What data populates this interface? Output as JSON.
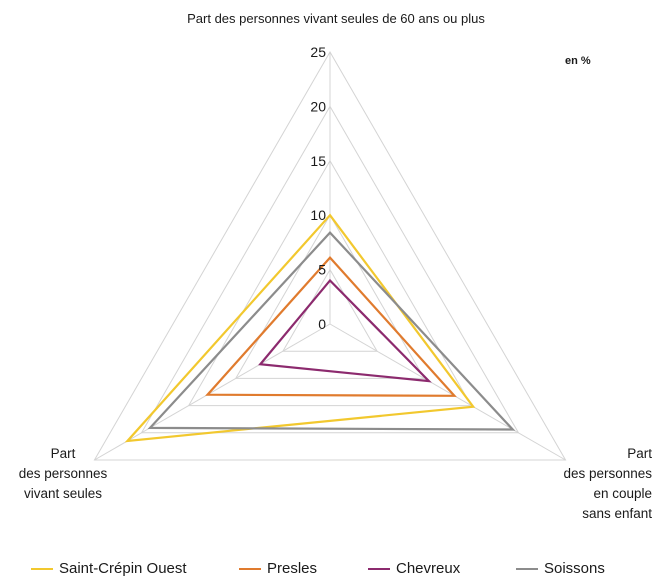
{
  "chart_data": {
    "type": "radar",
    "title": "Part des personnes vivant seules de 60 ans ou plus",
    "unit_label": "en %",
    "axes": [
      {
        "label_lines": [
          "Part des personnes vivant seules de 60 ans ou plus"
        ]
      },
      {
        "label_lines": [
          "Part",
          "des personnes",
          "en couple",
          "sans enfant"
        ]
      },
      {
        "label_lines": [
          "Part",
          "des personnes",
          "vivant seules"
        ]
      }
    ],
    "scale": {
      "min": 0,
      "max": 25,
      "step": 5,
      "ticks": [
        "0",
        "5",
        "10",
        "15",
        "20",
        "25"
      ]
    },
    "series": [
      {
        "name": "Saint-Crépin Ouest",
        "color": "#f2c82e",
        "values": [
          10.0,
          15.2,
          21.5
        ]
      },
      {
        "name": "Presles",
        "color": "#e07b2e",
        "values": [
          6.1,
          13.2,
          13.0
        ]
      },
      {
        "name": "Chevreux",
        "color": "#8c2a6e",
        "values": [
          4.0,
          10.5,
          7.4
        ]
      },
      {
        "name": "Soissons",
        "color": "#8c8c8c",
        "values": [
          8.4,
          19.4,
          19.1
        ]
      }
    ]
  }
}
